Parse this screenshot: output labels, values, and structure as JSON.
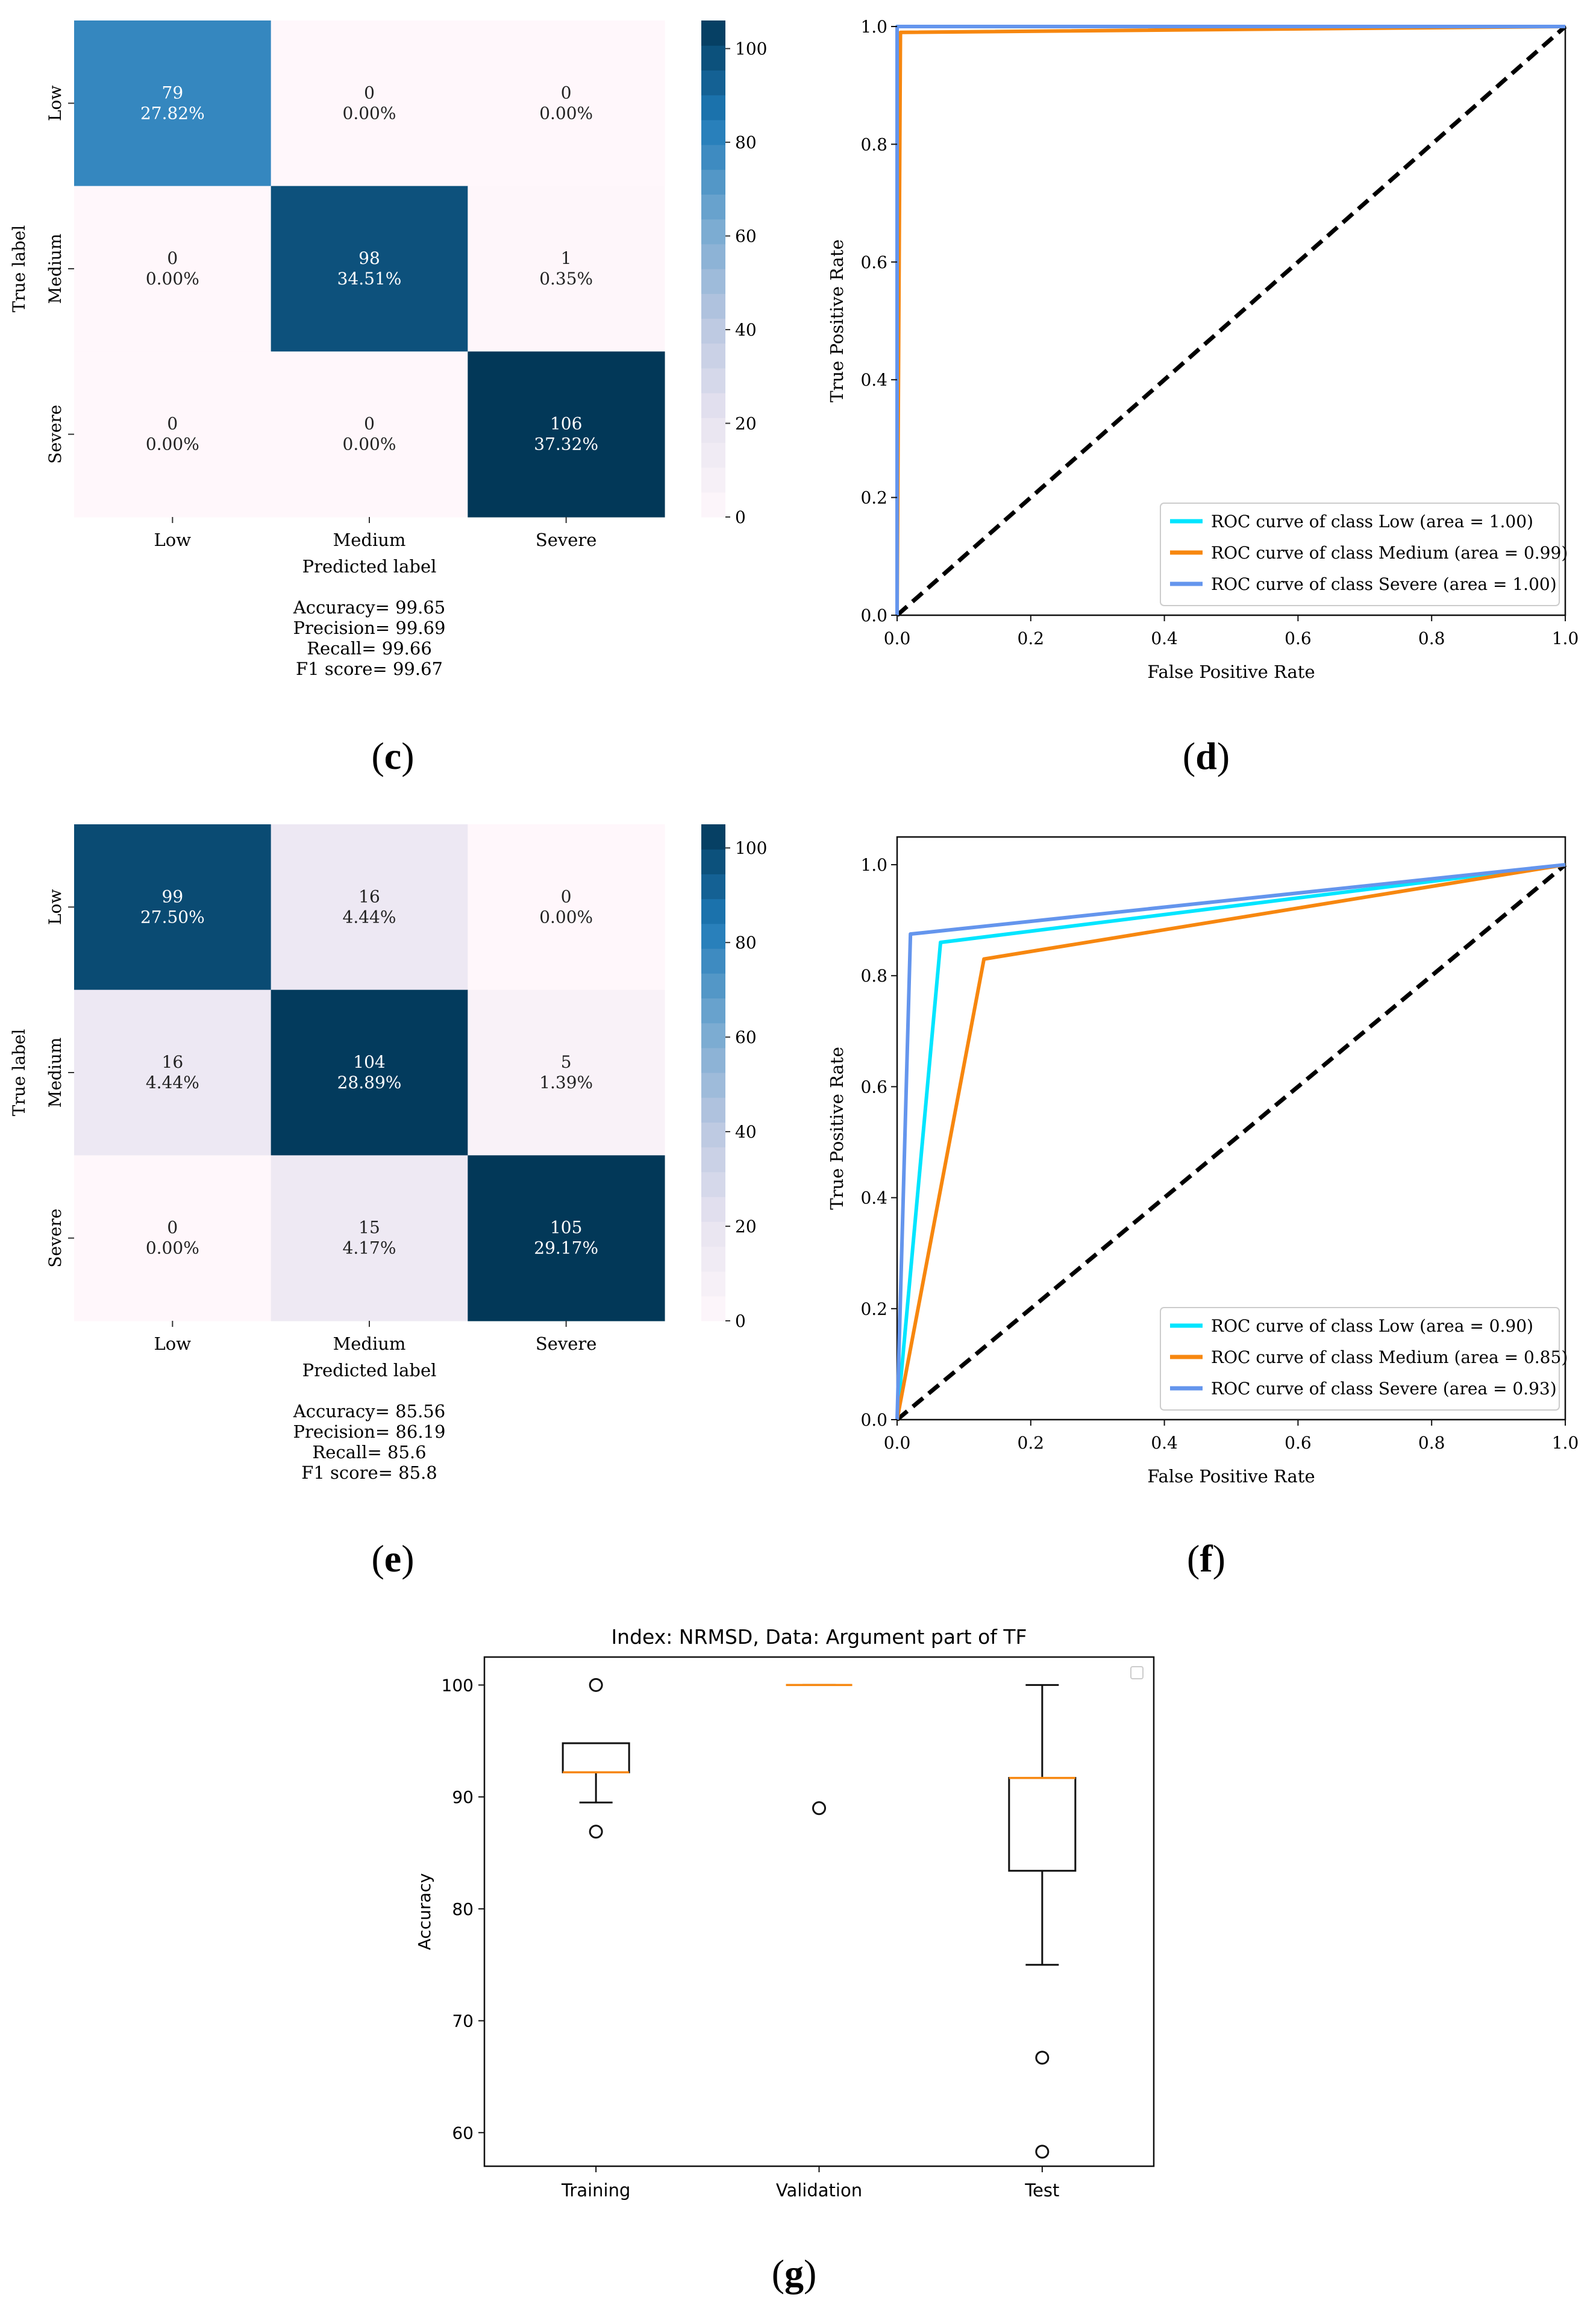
{
  "captions": {
    "c": "c",
    "d": "d",
    "e": "e",
    "f": "f",
    "g": "g"
  },
  "chart_data": [
    {
      "id": "c",
      "type": "heatmap",
      "title": "",
      "xlabel": "Predicted label",
      "ylabel": "True label",
      "x_categories": [
        "Low",
        "Medium",
        "Severe"
      ],
      "y_categories": [
        "Low",
        "Medium",
        "Severe"
      ],
      "values": [
        [
          79,
          0,
          0
        ],
        [
          0,
          98,
          1
        ],
        [
          0,
          0,
          106
        ]
      ],
      "percents": [
        [
          "27.82%",
          "0.00%",
          "0.00%"
        ],
        [
          "0.00%",
          "34.51%",
          "0.35%"
        ],
        [
          "0.00%",
          "0.00%",
          "37.32%"
        ]
      ],
      "colorbar": {
        "min": 0,
        "max": 106,
        "ticks": [
          0,
          20,
          40,
          60,
          80,
          100
        ]
      },
      "metrics": [
        "Accuracy= 99.65",
        "Precision= 99.69",
        "Recall= 99.66",
        "F1 score= 99.67"
      ]
    },
    {
      "id": "d",
      "type": "line",
      "title": "",
      "xlabel": "False Positive Rate",
      "ylabel": "True Positive Rate",
      "xlim": [
        0,
        1
      ],
      "ylim": [
        0,
        1
      ],
      "xticks": [
        "0.0",
        "0.2",
        "0.4",
        "0.6",
        "0.8",
        "1.0"
      ],
      "yticks": [
        "0.0",
        "0.2",
        "0.4",
        "0.6",
        "0.8",
        "1.0"
      ],
      "legend_position": "bottom-right",
      "series": [
        {
          "name": "ROC curve of class Low (area = 1.00)",
          "color": "#00e5ff",
          "x": [
            0,
            0,
            1
          ],
          "y": [
            0,
            1,
            1
          ]
        },
        {
          "name": "ROC curve of class Medium (area = 0.99)",
          "color": "#f7870f",
          "x": [
            0,
            0.005,
            1
          ],
          "y": [
            0,
            0.99,
            1
          ]
        },
        {
          "name": "ROC curve of class Severe (area = 1.00)",
          "color": "#6495ed",
          "x": [
            0,
            0,
            1
          ],
          "y": [
            0,
            1,
            1
          ]
        }
      ],
      "reference_line": {
        "x": [
          0,
          1
        ],
        "y": [
          0,
          1
        ],
        "color": "#000000"
      }
    },
    {
      "id": "e",
      "type": "heatmap",
      "title": "",
      "xlabel": "Predicted label",
      "ylabel": "True label",
      "x_categories": [
        "Low",
        "Medium",
        "Severe"
      ],
      "y_categories": [
        "Low",
        "Medium",
        "Severe"
      ],
      "values": [
        [
          99,
          16,
          0
        ],
        [
          16,
          104,
          5
        ],
        [
          0,
          15,
          105
        ]
      ],
      "percents": [
        [
          "27.50%",
          "4.44%",
          "0.00%"
        ],
        [
          "4.44%",
          "28.89%",
          "1.39%"
        ],
        [
          "0.00%",
          "4.17%",
          "29.17%"
        ]
      ],
      "colorbar": {
        "min": 0,
        "max": 105,
        "ticks": [
          0,
          20,
          40,
          60,
          80,
          100
        ]
      },
      "metrics": [
        "Accuracy= 85.56",
        "Precision= 86.19",
        "Recall= 85.6",
        "F1 score= 85.8"
      ]
    },
    {
      "id": "f",
      "type": "line",
      "title": "",
      "xlabel": "False Positive Rate",
      "ylabel": "True Positive Rate",
      "xlim": [
        0,
        1
      ],
      "ylim": [
        0,
        1.05
      ],
      "xticks": [
        "0.0",
        "0.2",
        "0.4",
        "0.6",
        "0.8",
        "1.0"
      ],
      "yticks": [
        "0.0",
        "0.2",
        "0.4",
        "0.6",
        "0.8",
        "1.0"
      ],
      "legend_position": "bottom-right",
      "series": [
        {
          "name": "ROC curve of class Low (area = 0.90)",
          "color": "#00e5ff",
          "x": [
            0,
            0.065,
            1
          ],
          "y": [
            0,
            0.86,
            1
          ]
        },
        {
          "name": "ROC curve of class Medium (area = 0.85)",
          "color": "#f7870f",
          "x": [
            0,
            0.13,
            1
          ],
          "y": [
            0,
            0.83,
            1
          ]
        },
        {
          "name": "ROC curve of class Severe (area = 0.93)",
          "color": "#6495ed",
          "x": [
            0,
            0.02,
            1
          ],
          "y": [
            0,
            0.875,
            1
          ]
        }
      ],
      "reference_line": {
        "x": [
          0,
          1
        ],
        "y": [
          0,
          1
        ],
        "color": "#000000"
      }
    },
    {
      "id": "g",
      "type": "box",
      "title": "Index: NRMSD, Data: Argument part of TF",
      "xlabel": "",
      "ylabel": "Accuracy",
      "ylim": [
        57,
        102.5
      ],
      "yticks": [
        60,
        70,
        80,
        90,
        100
      ],
      "categories": [
        "Training",
        "Validation",
        "Test"
      ],
      "boxes": [
        {
          "q1": 92.2,
          "median": 92.2,
          "q3": 94.8,
          "whisker_low": 89.5,
          "whisker_high": 94.8,
          "outliers": [
            100,
            86.9
          ]
        },
        {
          "q1": 100,
          "median": 100,
          "q3": 100,
          "whisker_low": 100,
          "whisker_high": 100,
          "outliers": [
            89
          ]
        },
        {
          "q1": 83.4,
          "median": 91.7,
          "q3": 91.7,
          "whisker_low": 75,
          "whisker_high": 100,
          "outliers": [
            66.7,
            58.3
          ]
        }
      ]
    }
  ]
}
